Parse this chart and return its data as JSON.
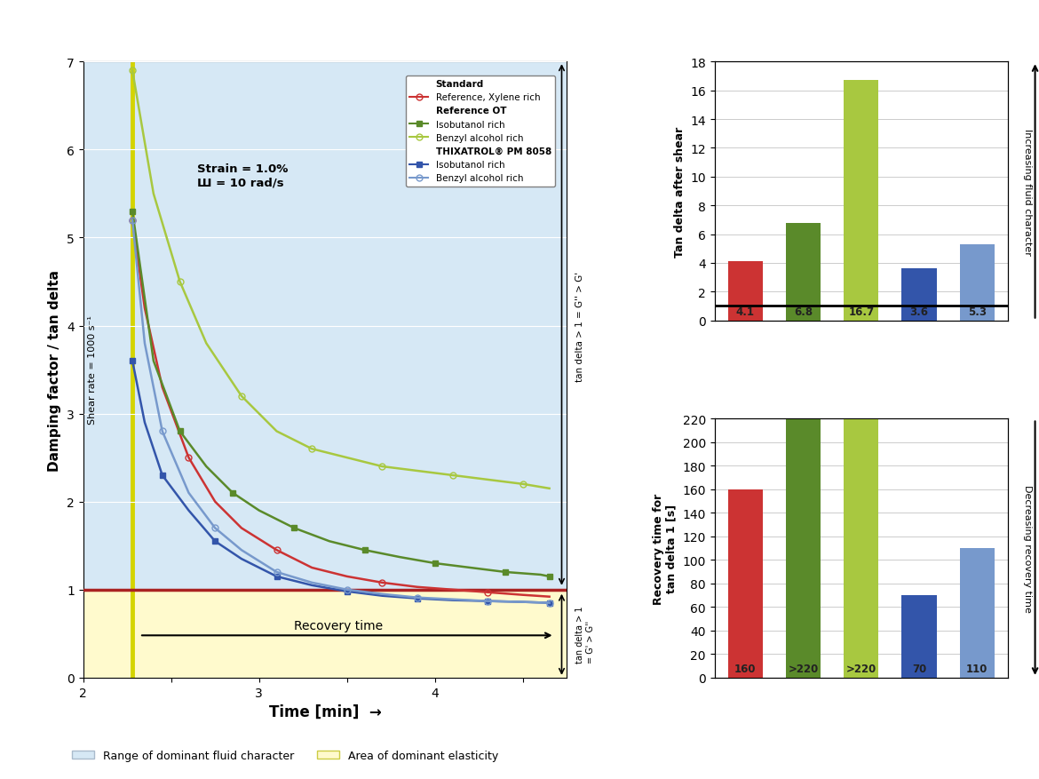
{
  "line_chart": {
    "xlim": [
      2.0,
      4.75
    ],
    "ylim": [
      0,
      7
    ],
    "xlabel": "Time [min]",
    "ylabel": "Damping factor / tan delta",
    "bg_color": "#d6e8f5",
    "yellow_bg_color": "#fffacd",
    "yellow_line_x": 2.28,
    "red_line_y": 1.0,
    "annotation_shear": "Shear rate = 1000 s⁻¹",
    "annotation_strain": "Strain = 1.0%\nШ = 10 rad/s",
    "recovery_text": "Recovery time",
    "right_label_upper": "tan delta > 1 = G'' > G'",
    "right_label_lower": "tan delta > 1\n= G' > G''",
    "legend_range_fluid": "Range of dominant fluid character",
    "legend_elasticity": "Area of dominant elasticity",
    "series": {
      "ref_xylene": {
        "color": "#cc3333",
        "linewidth": 1.8,
        "x": [
          2.28,
          2.35,
          2.45,
          2.6,
          2.75,
          2.9,
          3.1,
          3.3,
          3.5,
          3.7,
          3.9,
          4.1,
          4.3,
          4.5,
          4.65
        ],
        "y": [
          5.2,
          4.2,
          3.3,
          2.5,
          2.0,
          1.7,
          1.45,
          1.25,
          1.15,
          1.08,
          1.03,
          1.0,
          0.97,
          0.94,
          0.92
        ]
      },
      "isobutanol_ot": {
        "color": "#5a8a2a",
        "linewidth": 1.8,
        "x": [
          2.28,
          2.4,
          2.55,
          2.7,
          2.85,
          3.0,
          3.2,
          3.4,
          3.6,
          3.8,
          4.0,
          4.2,
          4.4,
          4.6,
          4.65
        ],
        "y": [
          5.3,
          3.6,
          2.8,
          2.4,
          2.1,
          1.9,
          1.7,
          1.55,
          1.45,
          1.37,
          1.3,
          1.25,
          1.2,
          1.17,
          1.15
        ]
      },
      "benzyl_ot": {
        "color": "#a8c840",
        "linewidth": 1.8,
        "x": [
          2.28,
          2.4,
          2.55,
          2.7,
          2.9,
          3.1,
          3.3,
          3.5,
          3.7,
          3.9,
          4.1,
          4.3,
          4.5,
          4.65
        ],
        "y": [
          6.9,
          5.5,
          4.5,
          3.8,
          3.2,
          2.8,
          2.6,
          2.5,
          2.4,
          2.35,
          2.3,
          2.25,
          2.2,
          2.15
        ]
      },
      "isobutanol_thix": {
        "color": "#3355aa",
        "linewidth": 1.8,
        "x": [
          2.28,
          2.35,
          2.45,
          2.6,
          2.75,
          2.9,
          3.1,
          3.3,
          3.5,
          3.7,
          3.9,
          4.1,
          4.3,
          4.5,
          4.65
        ],
        "y": [
          3.6,
          2.9,
          2.3,
          1.9,
          1.55,
          1.35,
          1.15,
          1.05,
          0.98,
          0.93,
          0.9,
          0.88,
          0.87,
          0.86,
          0.85
        ]
      },
      "benzyl_thix": {
        "color": "#7799cc",
        "linewidth": 1.8,
        "x": [
          2.28,
          2.35,
          2.45,
          2.6,
          2.75,
          2.9,
          3.1,
          3.3,
          3.5,
          3.7,
          3.9,
          4.1,
          4.3,
          4.5,
          4.65
        ],
        "y": [
          5.2,
          3.8,
          2.8,
          2.1,
          1.7,
          1.45,
          1.2,
          1.08,
          1.0,
          0.95,
          0.91,
          0.89,
          0.87,
          0.86,
          0.85
        ]
      }
    }
  },
  "bar_chart1": {
    "ylabel": "Tan delta after shear",
    "ylim": [
      0,
      18
    ],
    "yticks": [
      0,
      2,
      4,
      6,
      8,
      10,
      12,
      14,
      16,
      18
    ],
    "values": [
      4.1,
      6.8,
      16.7,
      3.6,
      5.3
    ],
    "colors": [
      "#cc3333",
      "#5a8a2a",
      "#a8c840",
      "#3355aa",
      "#7799cc"
    ],
    "bar_line_y": 1.0,
    "right_label": "Increasing fluid character"
  },
  "bar_chart2": {
    "ylabel": "Recovery time for\ntan delta 1 [s]",
    "ylim": [
      0,
      220
    ],
    "yticks": [
      0,
      20,
      40,
      60,
      80,
      100,
      120,
      140,
      160,
      180,
      200,
      220
    ],
    "values": [
      160,
      220,
      220,
      70,
      110
    ],
    "labels": [
      "160",
      ">220",
      ">220",
      "70",
      "110"
    ],
    "colors": [
      "#cc3333",
      "#5a8a2a",
      "#a8c840",
      "#3355aa",
      "#7799cc"
    ],
    "right_label": "Decreasing recovery time"
  }
}
